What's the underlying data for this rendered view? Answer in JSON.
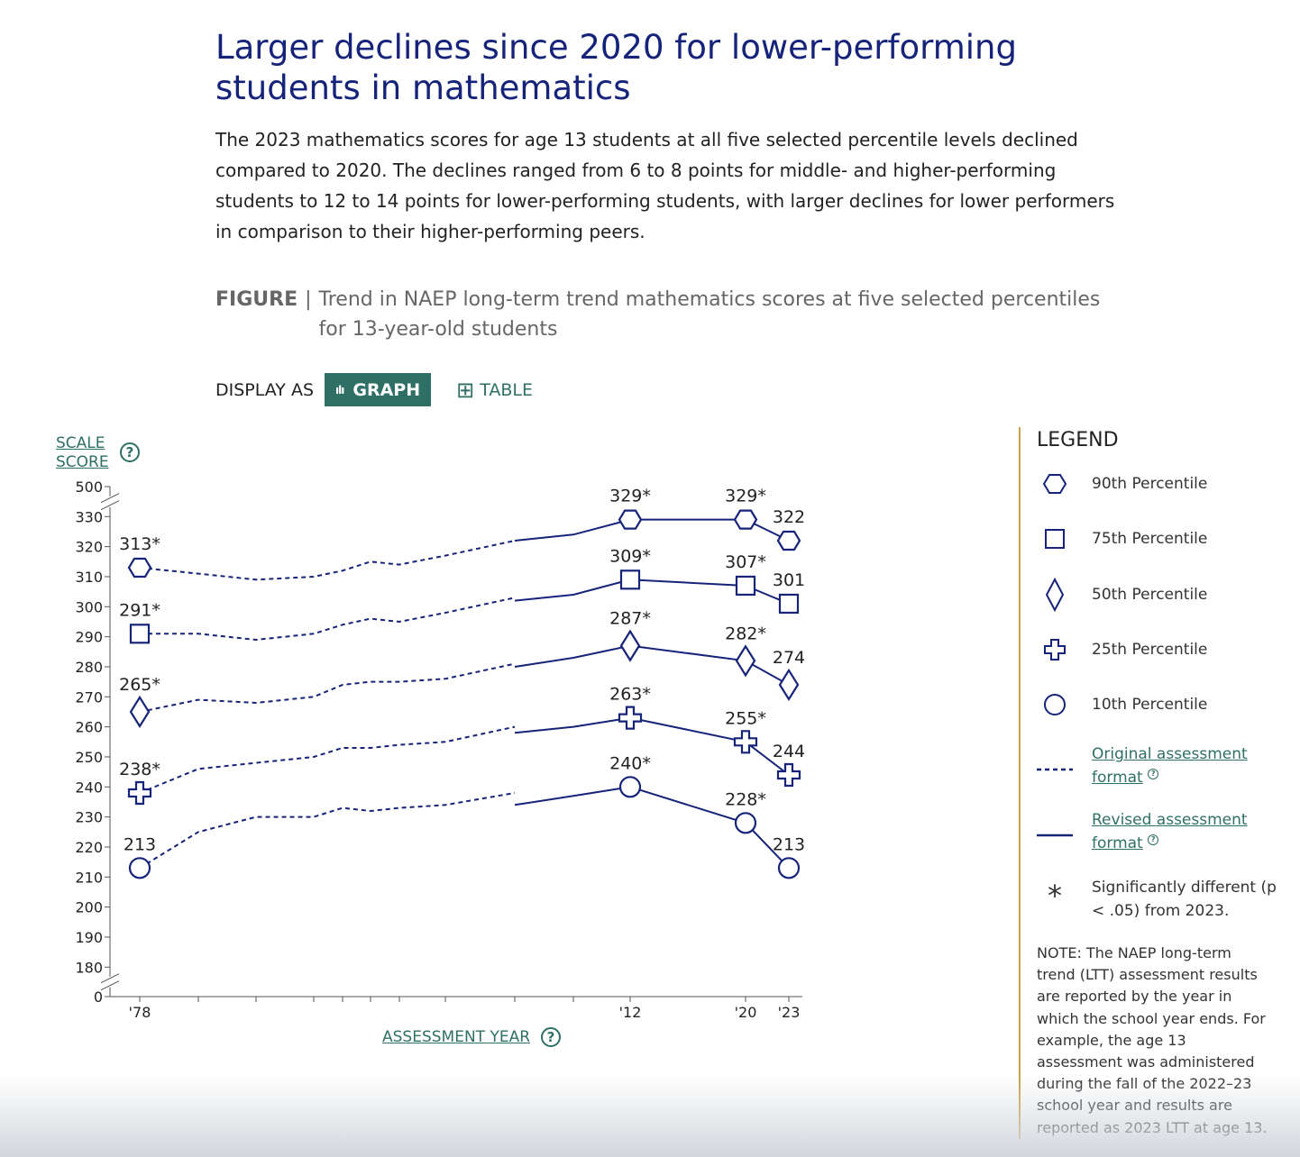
{
  "header": {
    "title": "Larger declines since 2020 for lower-performing students in mathematics",
    "description": "The 2023 mathematics scores for age 13 students at all five selected percentile levels declined compared to 2020. The declines ranged from 6 to 8 points for middle- and higher-performing students to 12 to 14 points for lower-performing students, with larger declines for lower performers in comparison to their higher-performing peers."
  },
  "figure": {
    "label": "FIGURE",
    "separator": "|",
    "caption": "Trend in NAEP long-term trend mathematics scores at five selected percentiles for 13-year-old students"
  },
  "display_as": {
    "label": "DISPLAY AS",
    "graph_label": "GRAPH",
    "table_label": "TABLE",
    "active": "graph"
  },
  "axes": {
    "y_title": "SCALE SCORE",
    "x_title": "ASSESSMENT YEAR",
    "help_glyph": "?"
  },
  "legend": {
    "title": "LEGEND",
    "items": [
      {
        "label": "90th Percentile",
        "symbol": "hexagon"
      },
      {
        "label": "75th Percentile",
        "symbol": "square"
      },
      {
        "label": "50th Percentile",
        "symbol": "diamond"
      },
      {
        "label": "25th Percentile",
        "symbol": "cross"
      },
      {
        "label": "10th Percentile",
        "symbol": "circle"
      }
    ],
    "original_format": "Original assessment format",
    "revised_format": "Revised assessment format",
    "asterisk_symbol": "*",
    "significance": "Significantly different (p < .05) from 2023.",
    "note": "NOTE: The NAEP long-term trend (LTT) assessment results are reported by the year in which the school year ends. For example, the age 13 assessment was administered during the fall of the 2022–23 school year and results are reported as 2023 LTT at age 13."
  },
  "chart_data": {
    "type": "line",
    "title": "Trend in NAEP long-term trend mathematics scores at five selected percentiles for 13-year-old students",
    "xlabel": "ASSESSMENT YEAR",
    "ylabel": "SCALE SCORE",
    "y_ticks": [
      0,
      180,
      190,
      200,
      210,
      220,
      230,
      240,
      250,
      260,
      270,
      280,
      290,
      300,
      310,
      320,
      330,
      500
    ],
    "y_axis_breaks": [
      "0-180",
      "330-500"
    ],
    "x_tick_labels": [
      {
        "year": 1978,
        "label": "'78"
      },
      {
        "year": 2012,
        "label": "'12"
      },
      {
        "year": 2020,
        "label": "'20"
      },
      {
        "year": 2023,
        "label": "'23"
      }
    ],
    "x_unlabeled_ticks": [
      1982,
      1986,
      1990,
      1992,
      1994,
      1996,
      1999,
      2004,
      2008
    ],
    "color": "#16237a",
    "series": [
      {
        "name": "90th Percentile",
        "symbol": "hexagon",
        "original": [
          [
            1978,
            313
          ],
          [
            1982,
            311
          ],
          [
            1986,
            309
          ],
          [
            1990,
            310
          ],
          [
            1992,
            312
          ],
          [
            1994,
            315
          ],
          [
            1996,
            314
          ],
          [
            1999,
            317
          ],
          [
            2004,
            322
          ]
        ],
        "revised": [
          [
            2004,
            322
          ],
          [
            2008,
            324
          ],
          [
            2012,
            329
          ],
          [
            2020,
            329
          ],
          [
            2023,
            322
          ]
        ],
        "labels": [
          {
            "year": 1978,
            "value": 313,
            "text": "313*"
          },
          {
            "year": 2012,
            "value": 329,
            "text": "329*"
          },
          {
            "year": 2020,
            "value": 329,
            "text": "329*"
          },
          {
            "year": 2023,
            "value": 322,
            "text": "322"
          }
        ]
      },
      {
        "name": "75th Percentile",
        "symbol": "square",
        "original": [
          [
            1978,
            291
          ],
          [
            1982,
            291
          ],
          [
            1986,
            289
          ],
          [
            1990,
            291
          ],
          [
            1992,
            294
          ],
          [
            1994,
            296
          ],
          [
            1996,
            295
          ],
          [
            1999,
            298
          ],
          [
            2004,
            303
          ]
        ],
        "revised": [
          [
            2004,
            302
          ],
          [
            2008,
            304
          ],
          [
            2012,
            309
          ],
          [
            2020,
            307
          ],
          [
            2023,
            301
          ]
        ],
        "labels": [
          {
            "year": 1978,
            "value": 291,
            "text": "291*"
          },
          {
            "year": 2012,
            "value": 309,
            "text": "309*"
          },
          {
            "year": 2020,
            "value": 307,
            "text": "307*"
          },
          {
            "year": 2023,
            "value": 301,
            "text": "301"
          }
        ]
      },
      {
        "name": "50th Percentile",
        "symbol": "diamond",
        "original": [
          [
            1978,
            265
          ],
          [
            1982,
            269
          ],
          [
            1986,
            268
          ],
          [
            1990,
            270
          ],
          [
            1992,
            274
          ],
          [
            1994,
            275
          ],
          [
            1996,
            275
          ],
          [
            1999,
            276
          ],
          [
            2004,
            281
          ]
        ],
        "revised": [
          [
            2004,
            280
          ],
          [
            2008,
            283
          ],
          [
            2012,
            287
          ],
          [
            2020,
            282
          ],
          [
            2023,
            274
          ]
        ],
        "labels": [
          {
            "year": 1978,
            "value": 265,
            "text": "265*"
          },
          {
            "year": 2012,
            "value": 287,
            "text": "287*"
          },
          {
            "year": 2020,
            "value": 282,
            "text": "282*"
          },
          {
            "year": 2023,
            "value": 274,
            "text": "274"
          }
        ]
      },
      {
        "name": "25th Percentile",
        "symbol": "cross",
        "original": [
          [
            1978,
            238
          ],
          [
            1982,
            246
          ],
          [
            1986,
            248
          ],
          [
            1990,
            250
          ],
          [
            1992,
            253
          ],
          [
            1994,
            253
          ],
          [
            1996,
            254
          ],
          [
            1999,
            255
          ],
          [
            2004,
            260
          ]
        ],
        "revised": [
          [
            2004,
            258
          ],
          [
            2008,
            260
          ],
          [
            2012,
            263
          ],
          [
            2020,
            255
          ],
          [
            2023,
            244
          ]
        ],
        "labels": [
          {
            "year": 1978,
            "value": 238,
            "text": "238*"
          },
          {
            "year": 2012,
            "value": 263,
            "text": "263*"
          },
          {
            "year": 2020,
            "value": 255,
            "text": "255*"
          },
          {
            "year": 2023,
            "value": 244,
            "text": "244"
          }
        ]
      },
      {
        "name": "10th Percentile",
        "symbol": "circle",
        "original": [
          [
            1978,
            213
          ],
          [
            1982,
            225
          ],
          [
            1986,
            230
          ],
          [
            1990,
            230
          ],
          [
            1992,
            233
          ],
          [
            1994,
            232
          ],
          [
            1996,
            233
          ],
          [
            1999,
            234
          ],
          [
            2004,
            238
          ]
        ],
        "revised": [
          [
            2004,
            234
          ],
          [
            2008,
            237
          ],
          [
            2012,
            240
          ],
          [
            2020,
            228
          ],
          [
            2023,
            213
          ]
        ],
        "labels": [
          {
            "year": 1978,
            "value": 213,
            "text": "213"
          },
          {
            "year": 2012,
            "value": 240,
            "text": "240*"
          },
          {
            "year": 2020,
            "value": 228,
            "text": "228*"
          },
          {
            "year": 2023,
            "value": 213,
            "text": "213"
          }
        ]
      }
    ]
  }
}
